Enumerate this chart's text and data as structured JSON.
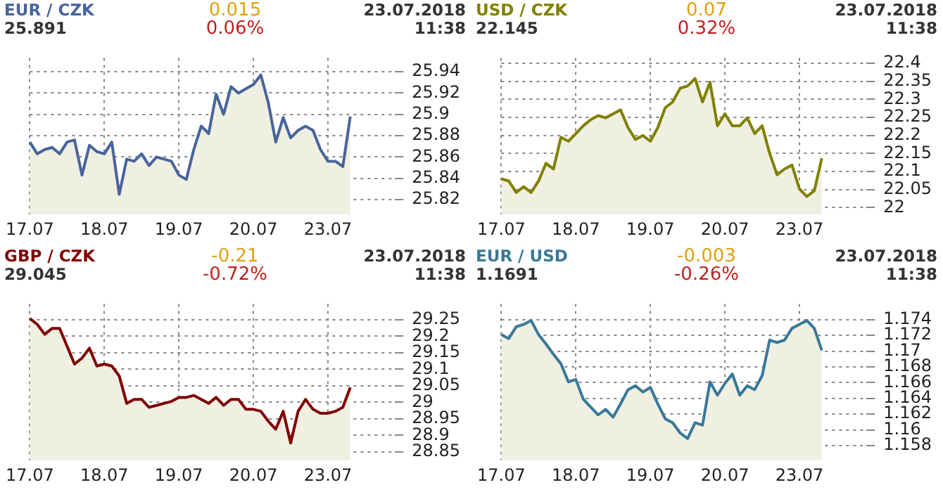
{
  "chart_data": [
    {
      "type": "area",
      "title": "EUR / CZK",
      "subtitle": "25.891",
      "annotations": [
        "0.015",
        "0.06%",
        "23.07.2018",
        "11:38"
      ],
      "categories": [
        "17.07",
        null,
        null,
        null,
        null,
        null,
        null,
        null,
        null,
        null,
        "18.07",
        null,
        null,
        null,
        null,
        null,
        null,
        null,
        null,
        null,
        "19.07",
        null,
        null,
        null,
        null,
        null,
        null,
        null,
        null,
        null,
        "20.07",
        null,
        null,
        null,
        null,
        null,
        null,
        null,
        null,
        null,
        "23.07",
        null,
        null,
        null,
        null,
        null,
        null,
        null,
        null,
        null
      ],
      "series": [
        {
          "color": "#48649a",
          "values": [
            25.874,
            25.863,
            25.867,
            25.869,
            25.863,
            25.874,
            25.876,
            25.843,
            25.871,
            25.865,
            25.863,
            25.874,
            25.825,
            25.858,
            25.856,
            25.863,
            25.852,
            25.86,
            25.858,
            25.856,
            25.843,
            25.839,
            25.867,
            25.889,
            25.882,
            25.919,
            25.9,
            25.926,
            25.92,
            25.924,
            25.928,
            25.937,
            25.911,
            25.874,
            25.897,
            25.878,
            25.885,
            25.889,
            25.885,
            25.867,
            25.856,
            25.856,
            25.851,
            25.898,
            null,
            null,
            null,
            null,
            null,
            null
          ]
        }
      ],
      "ylim": [
        25.806,
        25.953
      ],
      "yticks": [
        25.82,
        25.84,
        25.86,
        25.88,
        25.9,
        25.92,
        25.94
      ],
      "grid": true
    },
    {
      "type": "area",
      "title": "USD / CZK",
      "subtitle": "22.145",
      "annotations": [
        "0.07",
        "0.32%",
        "23.07.2018",
        "11:38"
      ],
      "categories": [
        "17.07",
        null,
        null,
        null,
        null,
        null,
        null,
        null,
        null,
        null,
        "18.07",
        null,
        null,
        null,
        null,
        null,
        null,
        null,
        null,
        null,
        "19.07",
        null,
        null,
        null,
        null,
        null,
        null,
        null,
        null,
        null,
        "20.07",
        null,
        null,
        null,
        null,
        null,
        null,
        null,
        null,
        null,
        "23.07",
        null,
        null,
        null,
        null,
        null,
        null,
        null,
        null,
        null
      ],
      "series": [
        {
          "color": "#808000",
          "values": [
            22.08,
            22.074,
            22.042,
            22.058,
            22.042,
            22.074,
            22.123,
            22.107,
            22.195,
            22.184,
            22.205,
            22.227,
            22.244,
            22.255,
            22.249,
            22.26,
            22.271,
            22.222,
            22.189,
            22.2,
            22.184,
            22.222,
            22.277,
            22.293,
            22.331,
            22.337,
            22.358,
            22.293,
            22.348,
            22.227,
            22.26,
            22.227,
            22.227,
            22.249,
            22.205,
            22.227,
            22.151,
            22.091,
            22.107,
            22.118,
            22.052,
            22.031,
            22.047,
            22.137,
            null,
            null,
            null,
            null,
            null,
            null
          ]
        }
      ],
      "ylim": [
        21.981,
        22.415
      ],
      "yticks": [
        22,
        22.05,
        22.1,
        22.15,
        22.2,
        22.25,
        22.3,
        22.35,
        22.4
      ],
      "grid": true
    },
    {
      "type": "area",
      "title": "GBP / CZK",
      "subtitle": "29.045",
      "annotations": [
        "-0.21",
        "-0.72%",
        "23.07.2018",
        "11:38"
      ],
      "categories": [
        "17.07",
        null,
        null,
        null,
        null,
        null,
        null,
        null,
        null,
        null,
        "18.07",
        null,
        null,
        null,
        null,
        null,
        null,
        null,
        null,
        null,
        "19.07",
        null,
        null,
        null,
        null,
        null,
        null,
        null,
        null,
        null,
        "20.07",
        null,
        null,
        null,
        null,
        null,
        null,
        null,
        null,
        null,
        "23.07",
        null,
        null,
        null,
        null,
        null,
        null,
        null,
        null,
        null
      ],
      "series": [
        {
          "color": "#800000",
          "values": [
            29.254,
            29.236,
            29.206,
            29.224,
            29.224,
            29.17,
            29.116,
            29.134,
            29.164,
            29.11,
            29.116,
            29.11,
            29.08,
            28.997,
            29.009,
            29.009,
            28.985,
            28.991,
            28.997,
            29.003,
            29.015,
            29.015,
            29.021,
            29.009,
            28.997,
            29.015,
            28.991,
            29.009,
            29.009,
            28.979,
            28.979,
            28.973,
            28.943,
            28.919,
            28.973,
            28.877,
            28.973,
            29.009,
            28.979,
            28.967,
            28.967,
            28.973,
            28.985,
            29.045,
            null,
            null,
            null,
            null,
            null,
            null
          ]
        }
      ],
      "ylim": [
        28.824,
        29.298
      ],
      "yticks": [
        28.85,
        28.9,
        28.95,
        29,
        29.05,
        29.1,
        29.15,
        29.2,
        29.25
      ],
      "grid": true
    },
    {
      "type": "area",
      "title": "EUR / USD",
      "subtitle": "1.1691",
      "annotations": [
        "-0.003",
        "-0.26%",
        "23.07.2018",
        "11:38"
      ],
      "categories": [
        "17.07",
        null,
        null,
        null,
        null,
        null,
        null,
        null,
        null,
        null,
        "18.07",
        null,
        null,
        null,
        null,
        null,
        null,
        null,
        null,
        null,
        "19.07",
        null,
        null,
        null,
        null,
        null,
        null,
        null,
        null,
        null,
        "20.07",
        null,
        null,
        null,
        null,
        null,
        null,
        null,
        null,
        null,
        "23.07",
        null,
        null,
        null,
        null,
        null,
        null,
        null,
        null,
        null
      ],
      "series": [
        {
          "color": "#3a7898",
          "values": [
            1.1721,
            1.1716,
            1.1731,
            1.1734,
            1.1739,
            1.1721,
            1.1709,
            1.1696,
            1.1684,
            1.1661,
            1.1664,
            1.1639,
            1.1629,
            1.1619,
            1.1626,
            1.1616,
            1.1633,
            1.1651,
            1.1656,
            1.1648,
            1.1654,
            1.1633,
            1.1614,
            1.1609,
            1.1596,
            1.1589,
            1.1609,
            1.1606,
            1.1661,
            1.1644,
            1.1659,
            1.1671,
            1.1644,
            1.1656,
            1.1651,
            1.1669,
            1.1714,
            1.1711,
            1.1714,
            1.1729,
            1.1734,
            1.1739,
            1.1729,
            1.1701,
            null,
            null,
            null,
            null,
            null,
            null
          ]
        }
      ],
      "ylim": [
        1.1561,
        1.176
      ],
      "yticks": [
        1.158,
        1.16,
        1.162,
        1.164,
        1.166,
        1.168,
        1.17,
        1.172,
        1.174
      ],
      "grid": true
    }
  ]
}
